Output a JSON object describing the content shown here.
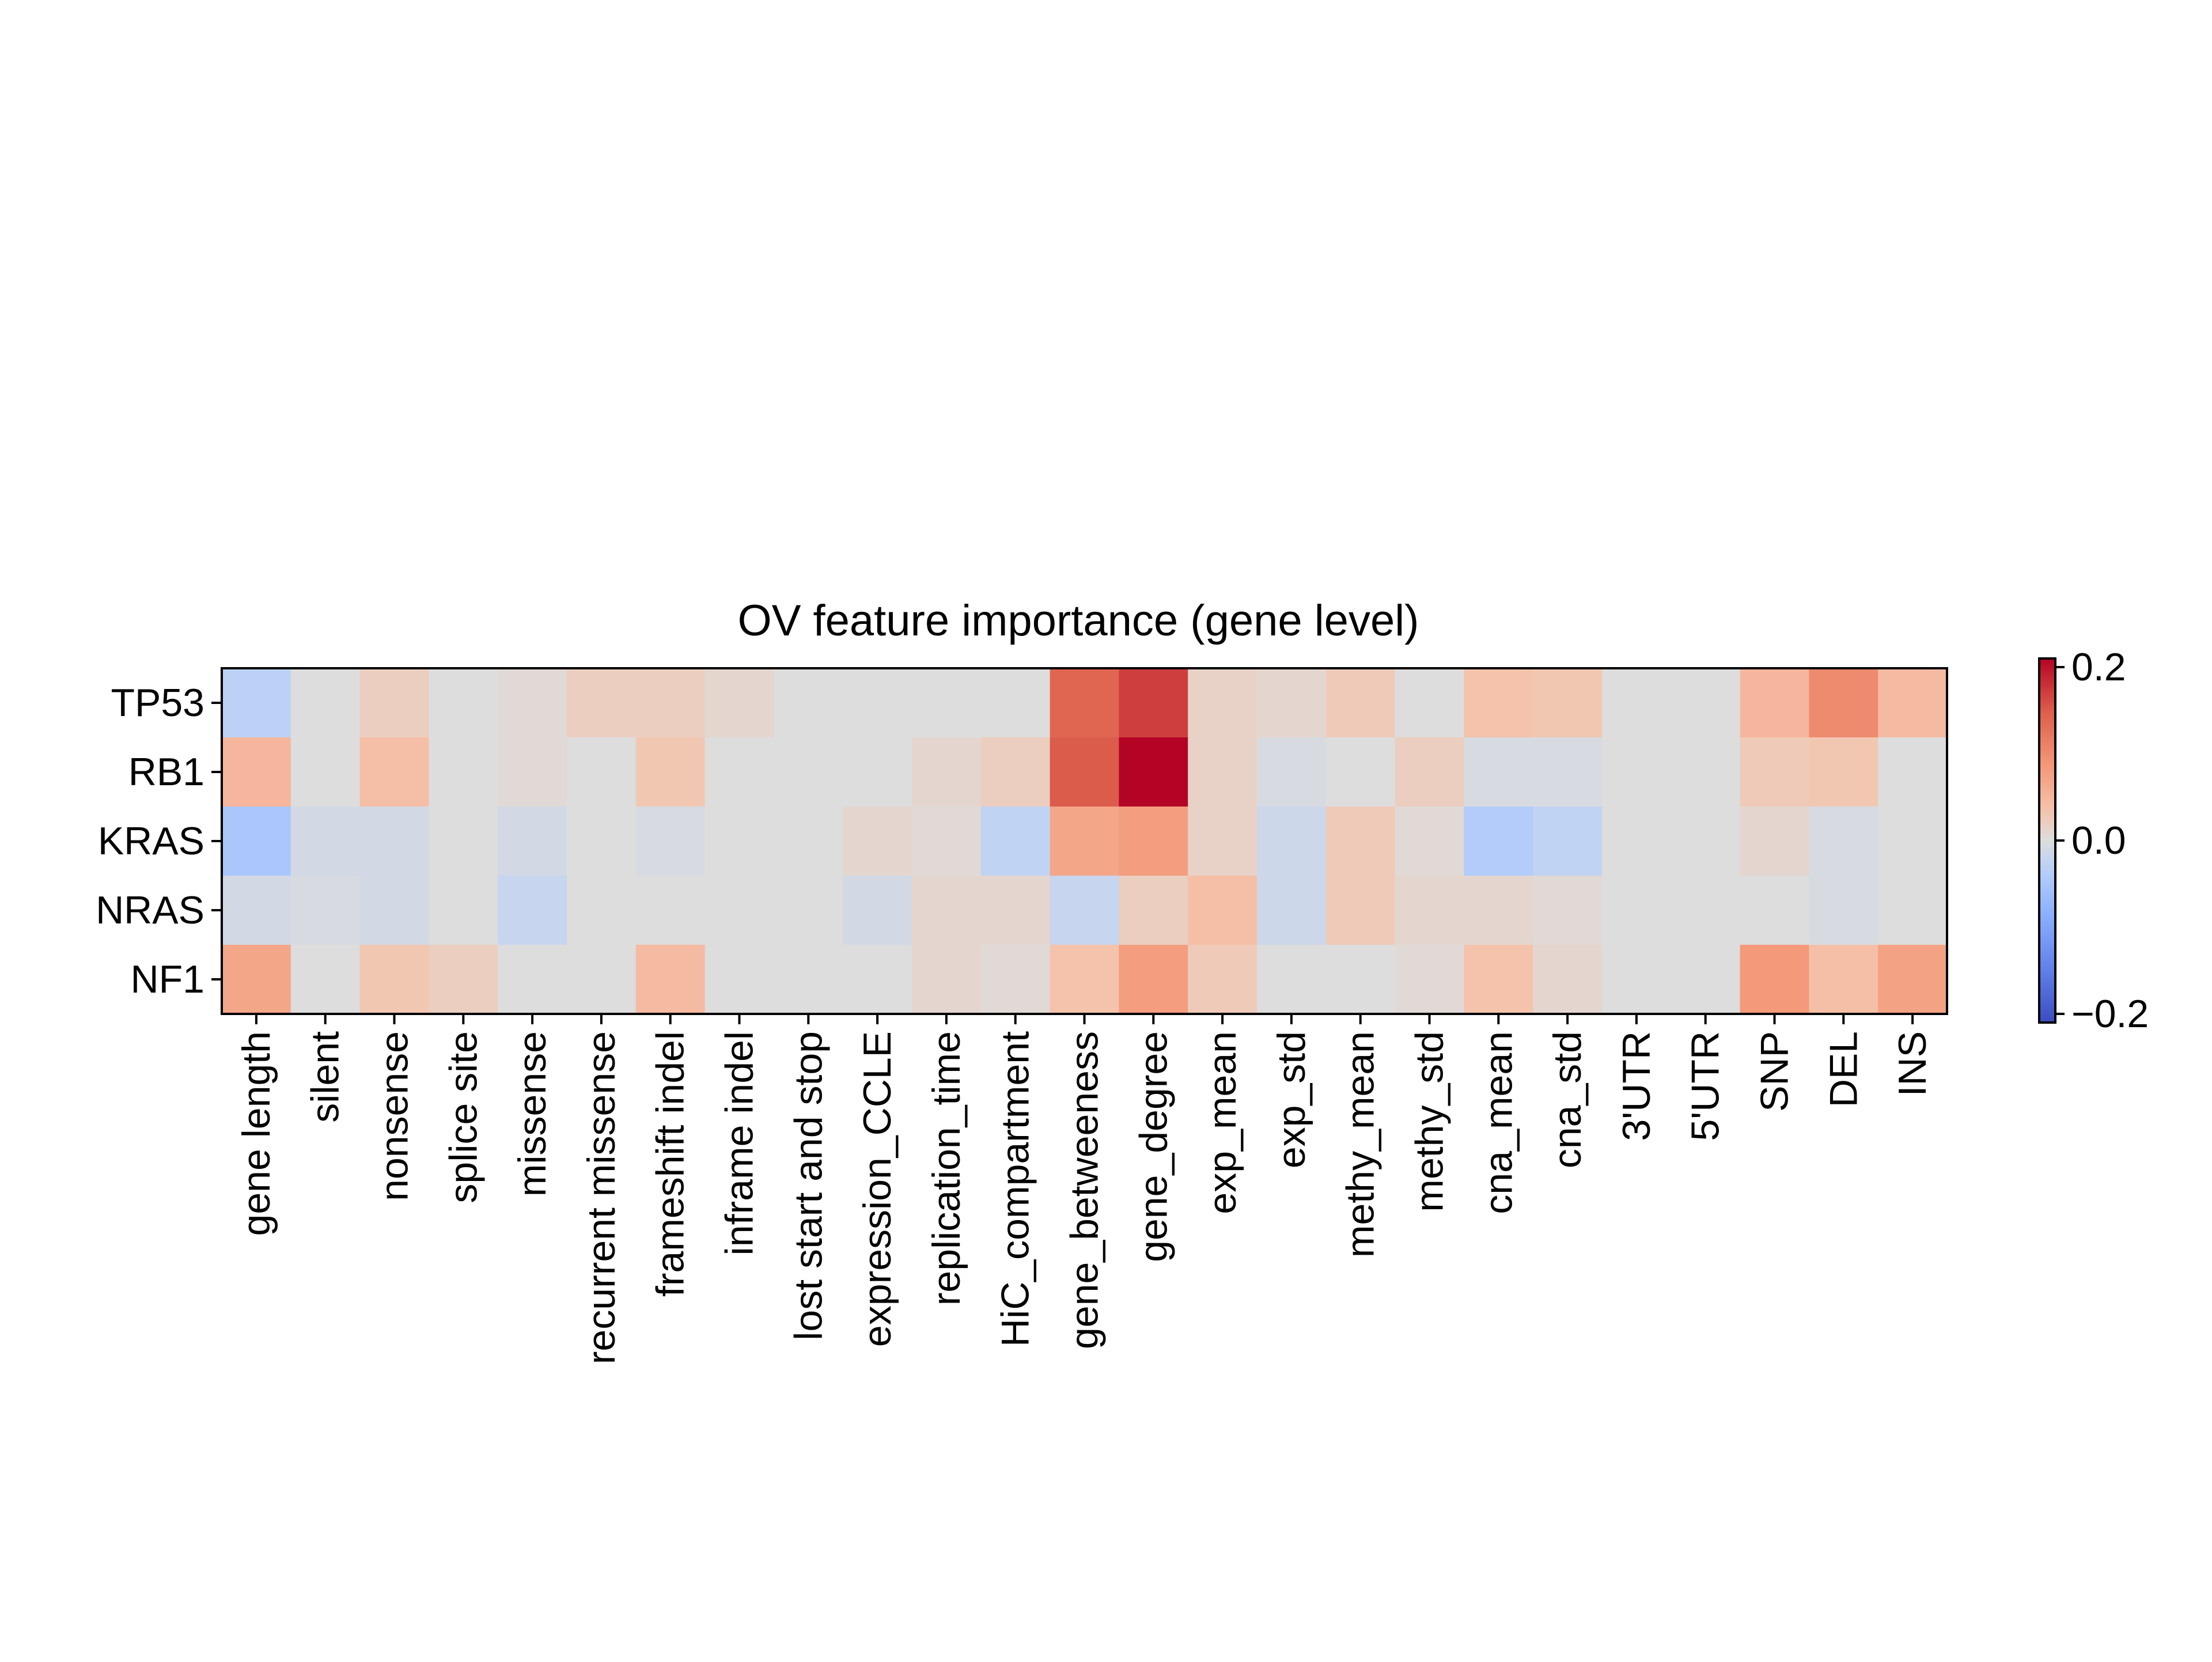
{
  "chart_data": {
    "type": "heatmap",
    "title": "OV feature importance (gene level)",
    "rows": [
      "TP53",
      "RB1",
      "KRAS",
      "NRAS",
      "NF1"
    ],
    "columns": [
      "gene length",
      "silent",
      "nonsense",
      "splice site",
      "missense",
      "recurrent missense",
      "frameshift indel",
      "inframe indel",
      "lost start and stop",
      "expression_CCLE",
      "replication_time",
      "HiC_compartment",
      "gene_betweeness",
      "gene_degree",
      "exp_mean",
      "exp_std",
      "methy_mean",
      "methy_std",
      "cna_mean",
      "cna_std",
      "3'UTR",
      "5'UTR",
      "SNP",
      "DEL",
      "INS"
    ],
    "values": [
      [
        -0.03,
        0.0,
        0.02,
        0.0,
        0.005,
        0.02,
        0.02,
        0.01,
        0.0,
        0.0,
        0.0,
        0.0,
        0.14,
        0.17,
        0.015,
        0.01,
        0.025,
        0.0,
        0.035,
        0.03,
        0.0,
        0.0,
        0.05,
        0.1,
        0.045
      ],
      [
        0.05,
        0.0,
        0.04,
        0.0,
        0.005,
        0.0,
        0.03,
        0.0,
        0.0,
        0.0,
        0.01,
        0.02,
        0.15,
        0.21,
        0.015,
        -0.005,
        0.0,
        0.02,
        -0.005,
        -0.005,
        0.0,
        0.0,
        0.025,
        0.03,
        0.0
      ],
      [
        -0.05,
        -0.01,
        -0.01,
        0.0,
        -0.01,
        0.0,
        -0.005,
        0.0,
        0.0,
        0.01,
        0.005,
        -0.025,
        0.07,
        0.08,
        0.015,
        -0.015,
        0.025,
        0.005,
        -0.04,
        -0.025,
        0.0,
        0.0,
        0.01,
        -0.005,
        0.0
      ],
      [
        -0.01,
        -0.005,
        -0.01,
        0.0,
        -0.02,
        0.0,
        0.0,
        0.0,
        0.0,
        -0.01,
        0.01,
        0.01,
        -0.02,
        0.02,
        0.04,
        -0.015,
        0.025,
        0.01,
        0.01,
        0.005,
        0.0,
        0.0,
        0.0,
        -0.005,
        0.0
      ],
      [
        0.07,
        0.0,
        0.03,
        0.02,
        0.0,
        0.0,
        0.045,
        0.0,
        0.0,
        0.0,
        0.01,
        0.005,
        0.035,
        0.08,
        0.025,
        0.0,
        0.0,
        0.005,
        0.035,
        0.01,
        0.0,
        0.0,
        0.085,
        0.04,
        0.075
      ]
    ],
    "colormap": "coolwarm",
    "vmin": -0.21,
    "vmax": 0.21,
    "colorbar_ticks": [
      0.2,
      0.0,
      -0.2
    ],
    "colorbar_tick_labels": [
      "0.2",
      "0.0",
      "−0.2"
    ]
  }
}
